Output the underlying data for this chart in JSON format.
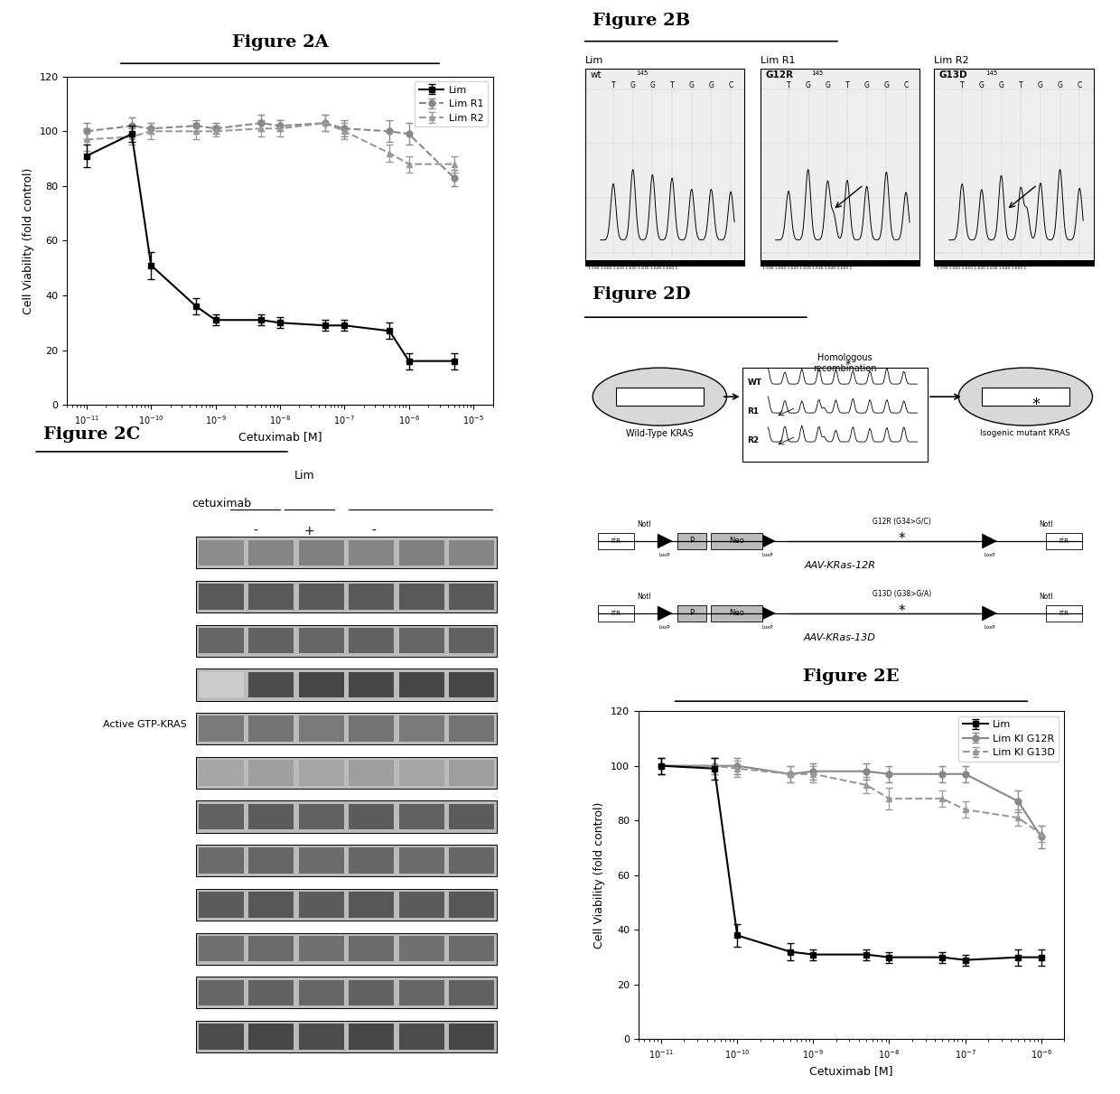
{
  "fig2a_title": "Figure 2A",
  "fig2b_title": "Figure 2B",
  "fig2c_title": "Figure 2C",
  "fig2d_title": "Figure 2D",
  "fig2e_title": "Figure 2E",
  "xlabel": "Cetuximab [M]",
  "ylabel": "Cell Viability (fold control)",
  "ylim_a": [
    0,
    120
  ],
  "yticks_a": [
    0,
    20,
    40,
    60,
    80,
    100,
    120
  ],
  "fig2a_x": [
    1e-11,
    5e-11,
    1e-10,
    5e-10,
    1e-09,
    5e-09,
    1e-08,
    5e-08,
    1e-07,
    5e-07,
    1e-06,
    5e-06
  ],
  "fig2a_lim_y": [
    91,
    99,
    51,
    36,
    31,
    31,
    30,
    29,
    29,
    27,
    16,
    16
  ],
  "fig2a_lim_yerr": [
    4,
    3,
    5,
    3,
    2,
    2,
    2,
    2,
    2,
    3,
    3,
    3
  ],
  "fig2a_r1_y": [
    100,
    102,
    101,
    102,
    101,
    103,
    102,
    103,
    101,
    100,
    99,
    83
  ],
  "fig2a_r1_yerr": [
    3,
    3,
    2,
    2,
    2,
    3,
    2,
    3,
    3,
    4,
    4,
    3
  ],
  "fig2a_r2_y": [
    97,
    98,
    100,
    100,
    100,
    101,
    101,
    103,
    100,
    92,
    88,
    88
  ],
  "fig2a_r2_yerr": [
    4,
    3,
    3,
    3,
    2,
    3,
    3,
    3,
    3,
    3,
    3,
    3
  ],
  "fig2e_x": [
    1e-11,
    5e-11,
    1e-10,
    5e-10,
    1e-09,
    5e-09,
    1e-08,
    5e-08,
    1e-07,
    5e-07,
    1e-06
  ],
  "fig2e_lim_y": [
    100,
    99,
    38,
    32,
    31,
    31,
    30,
    30,
    29,
    30,
    30
  ],
  "fig2e_lim_yerr": [
    3,
    4,
    4,
    3,
    2,
    2,
    2,
    2,
    2,
    3,
    3
  ],
  "fig2e_ki12r_y": [
    100,
    100,
    100,
    97,
    98,
    98,
    97,
    97,
    97,
    87,
    74
  ],
  "fig2e_ki12r_yerr": [
    3,
    3,
    3,
    3,
    3,
    3,
    3,
    3,
    3,
    4,
    4
  ],
  "fig2e_ki13d_y": [
    100,
    100,
    99,
    97,
    97,
    93,
    88,
    88,
    84,
    81,
    75
  ],
  "fig2e_ki13d_yerr": [
    3,
    3,
    3,
    3,
    3,
    3,
    4,
    3,
    3,
    3,
    3
  ],
  "legend2a": [
    "Lim",
    "Lim R1",
    "Lim R2"
  ],
  "legend2e": [
    "Lim",
    "Lim KI G12R",
    "Lim KI G13D"
  ],
  "white": "#ffffff",
  "black": "#000000",
  "gray1": "#888888",
  "gray2": "#999999",
  "light_gray": "#d8d8d8",
  "blot_bg": "#c8c8c8"
}
